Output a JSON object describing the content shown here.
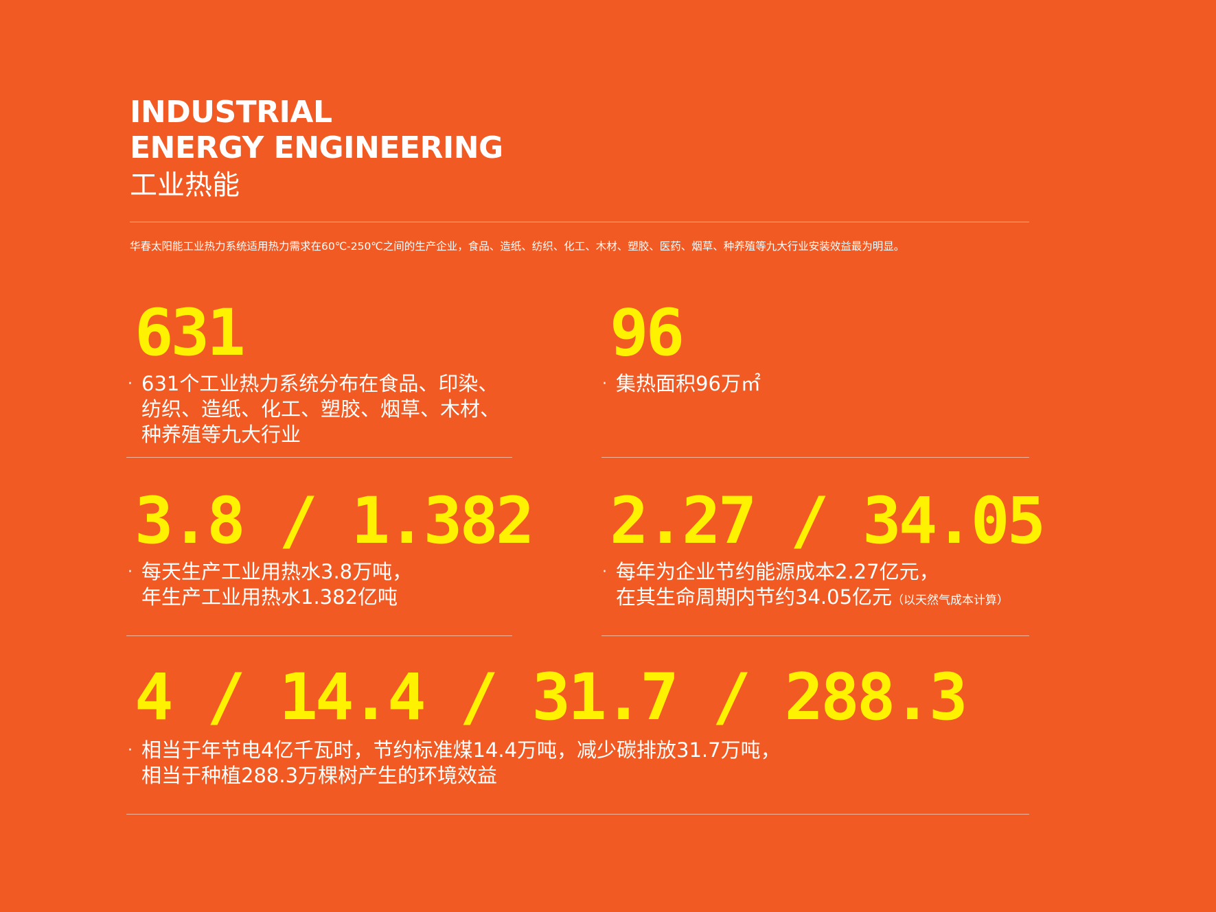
{
  "header": {
    "title_en_line1": "INDUSTRIAL",
    "title_en_line2": "ENERGY ENGINEERING",
    "title_cn": "工业热能"
  },
  "intro": "华春太阳能工业热力系统适用热力需求在60℃-250℃之间的生产企业，食品、造纸、纺织、化工、木材、塑胶、医药、烟草、种养殖等九大行业安装效益最为明显。",
  "stats": [
    {
      "value": "631",
      "lines": [
        "631个工业热力系统分布在食品、印染、",
        "纺织、造纸、化工、塑胶、烟草、木材、",
        "种养殖等九大行业"
      ]
    },
    {
      "value": "96",
      "lines": [
        "集热面积96万㎡"
      ]
    },
    {
      "value": "3.8 / 1.382",
      "lines": [
        "每天生产工业用热水3.8万吨，",
        "年生产工业用热水1.382亿吨"
      ]
    },
    {
      "value": "2.27 / 34.05",
      "lines": [
        "每年为企业节约能源成本2.27亿元，",
        "在其生命周期内节约34.05亿元"
      ],
      "note": "（以天然气成本计算）"
    },
    {
      "value": "4 / 14.4 / 31.7 / 288.3",
      "lines": [
        "相当于年节电4亿千瓦时，节约标准煤14.4万吨，减少碳排放31.7万吨，",
        "相当于种植288.3万棵树产生的环境效益"
      ]
    }
  ],
  "bullet": "·",
  "colors": {
    "background": "#f15a22",
    "accent": "#fff200",
    "text": "#ffffff"
  }
}
